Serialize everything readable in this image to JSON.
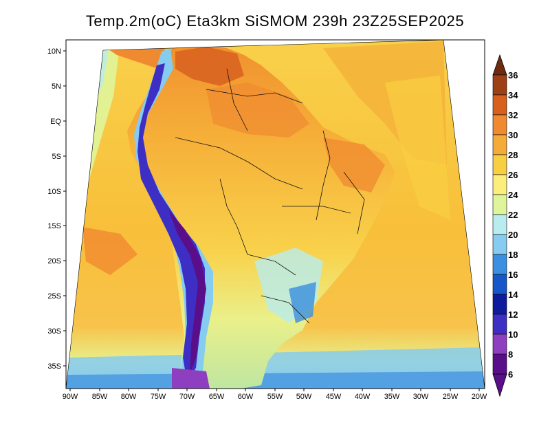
{
  "title": "Temp.2m(oC) Eta3km SiSMOM 239h 23Z25SEP2025",
  "lat_labels": [
    "10N",
    "5N",
    "EQ",
    "5S",
    "10S",
    "15S",
    "20S",
    "25S",
    "30S",
    "35S"
  ],
  "lon_labels": [
    "90W",
    "85W",
    "80W",
    "75W",
    "70W",
    "65W",
    "60W",
    "55W",
    "50W",
    "45W",
    "40W",
    "35W",
    "30W",
    "25W",
    "20W"
  ],
  "colorbar": {
    "unit": "oC",
    "labels": [
      "36",
      "34",
      "32",
      "30",
      "28",
      "26",
      "24",
      "22",
      "20",
      "18",
      "16",
      "14",
      "12",
      "10",
      "8",
      "6"
    ],
    "colors": [
      "#6e2a10",
      "#9e4015",
      "#d8601e",
      "#f08a30",
      "#f5ab38",
      "#f9cf42",
      "#fbee7c",
      "#dff59a",
      "#b8ecef",
      "#86cbf0",
      "#3a8fe0",
      "#1656c8",
      "#0c1c9c",
      "#3d2fc4",
      "#8e3fc0",
      "#5b0e8a"
    ]
  },
  "colors": {
    "ocean_base": "#f8c23c",
    "land_base": "#f4b23a",
    "andes": "#5b1f9a"
  }
}
